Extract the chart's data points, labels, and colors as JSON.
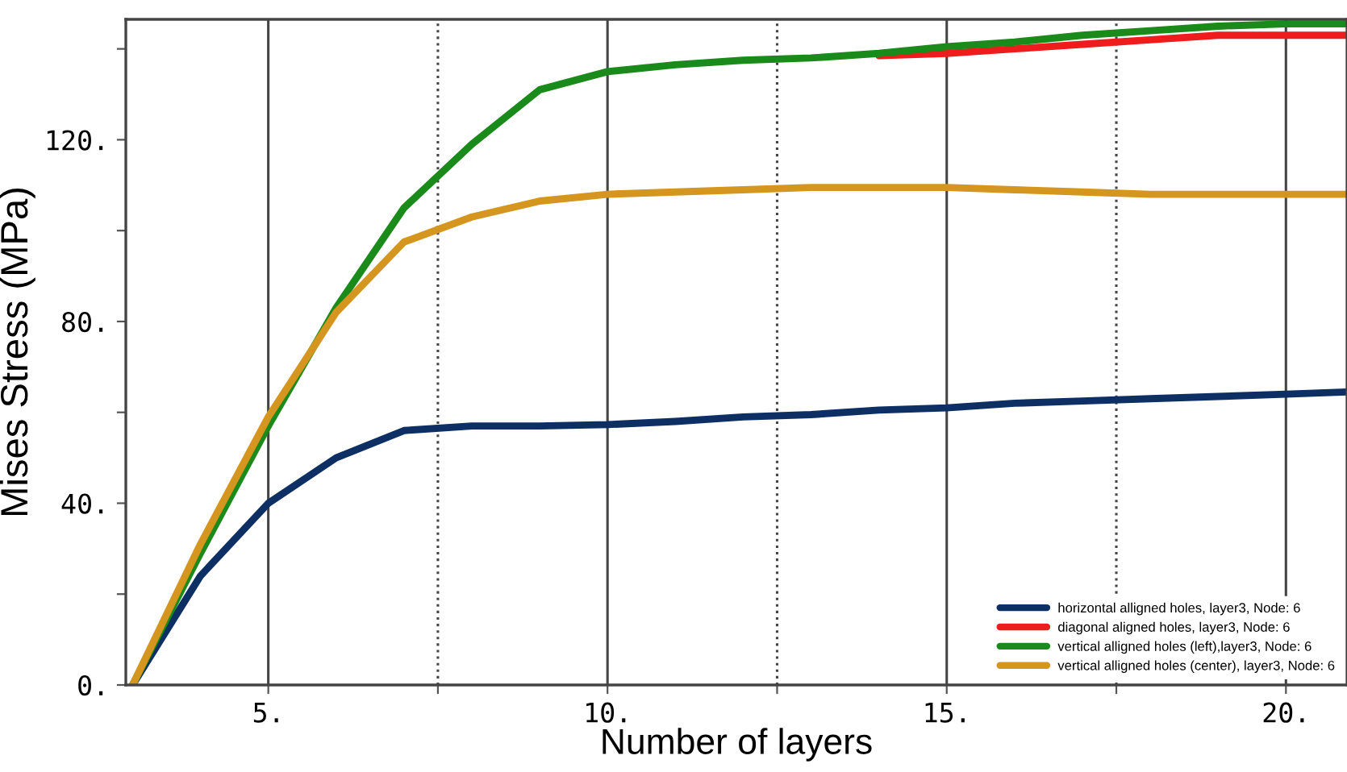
{
  "chart_data": {
    "type": "line",
    "xlabel": "Number of layers",
    "ylabel": "Mises Stress (MPa)",
    "x": [
      3,
      4,
      5,
      6,
      7,
      8,
      9,
      10,
      11,
      12,
      13,
      14,
      15,
      16,
      17,
      18,
      19,
      20,
      20.9
    ],
    "series": [
      {
        "name": "horizontal alligned holes, layer3, Node: 6",
        "color": "#0d2f63",
        "values": [
          0,
          24,
          40,
          50,
          56,
          57,
          57,
          57.3,
          58,
          59,
          59.5,
          60.5,
          61,
          62,
          62.5,
          63,
          63.5,
          64,
          64.5
        ]
      },
      {
        "name": "diagonal aligned holes, layer3, Node: 6",
        "color": "#ee1c1c",
        "values": [
          null,
          null,
          null,
          null,
          null,
          null,
          null,
          null,
          null,
          null,
          null,
          138.5,
          139,
          140,
          141,
          142,
          143,
          143,
          143
        ]
      },
      {
        "name": "vertical alligned holes (left),layer3, Node: 6",
        "color": "#1a8a1a",
        "values": [
          0,
          29,
          57,
          83,
          105,
          119,
          131,
          135,
          136.5,
          137.5,
          138,
          139,
          140.5,
          141.5,
          143,
          144,
          145,
          145.5,
          145.5
        ]
      },
      {
        "name": "vertical alligned holes (center), layer3, Node: 6",
        "color": "#d4961e",
        "values": [
          0,
          31,
          59,
          82,
          97.5,
          103,
          106.5,
          108,
          108.5,
          109,
          109.5,
          109.5,
          109.5,
          109,
          108.5,
          108,
          108,
          108,
          108
        ]
      }
    ],
    "xlim": [
      2.9,
      20.9
    ],
    "ylim": [
      0,
      146.5
    ],
    "xticks": [
      {
        "value": 5,
        "label": "5."
      },
      {
        "value": 7.5,
        "label": null
      },
      {
        "value": 10,
        "label": "10."
      },
      {
        "value": 12.5,
        "label": null
      },
      {
        "value": 15,
        "label": "15."
      },
      {
        "value": 17.5,
        "label": null
      },
      {
        "value": 20,
        "label": "20."
      }
    ],
    "yticks": [
      {
        "value": 0,
        "label": "0."
      },
      {
        "value": 20,
        "label": null
      },
      {
        "value": 40,
        "label": "40."
      },
      {
        "value": 60,
        "label": null
      },
      {
        "value": 80,
        "label": "80."
      },
      {
        "value": 100,
        "label": null
      },
      {
        "value": 120,
        "label": "120."
      },
      {
        "value": 140,
        "label": null
      }
    ],
    "grid": "x",
    "legend": "bottom right",
    "marker": "none",
    "line_style": "solid"
  }
}
